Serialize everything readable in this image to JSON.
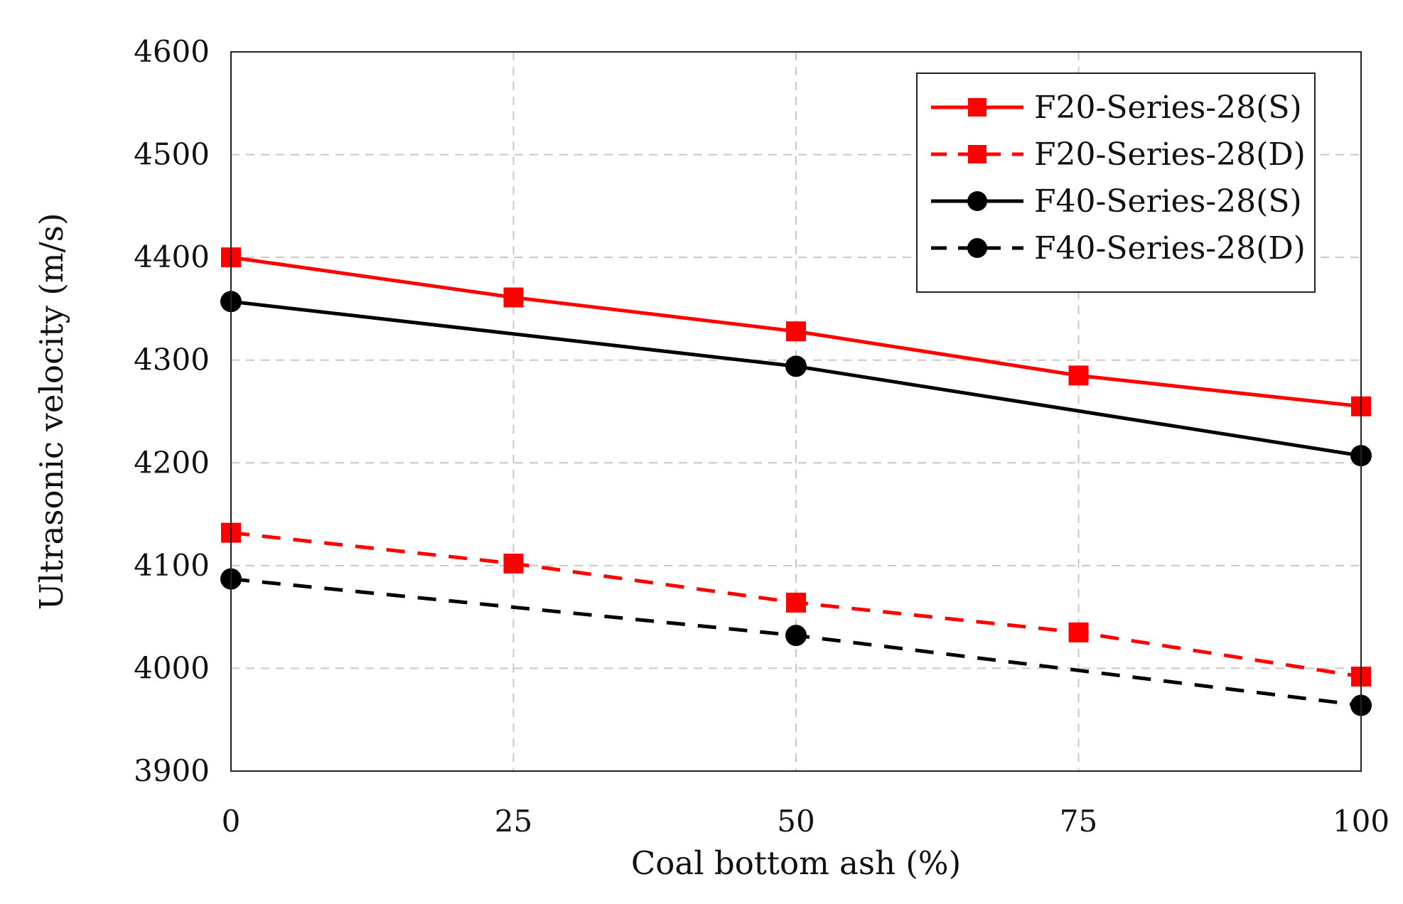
{
  "chart_data": {
    "type": "line",
    "title": "",
    "xlabel": "Coal bottom ash (%)",
    "ylabel": "Ultrasonic velocity (m/s)",
    "x": [
      0,
      25,
      50,
      75,
      100
    ],
    "x_tick_labels": [
      "0",
      "25",
      "50",
      "75",
      "100"
    ],
    "xlim": [
      0,
      100
    ],
    "ylim": [
      3900,
      4600
    ],
    "y_ticks": [
      3900,
      4000,
      4100,
      4200,
      4300,
      4400,
      4500,
      4600
    ],
    "y_tick_labels": [
      "3900",
      "4000",
      "4100",
      "4200",
      "4300",
      "4400",
      "4500",
      "4600"
    ],
    "grid": true,
    "legend_position": "top-right",
    "series": [
      {
        "name": "F20-Series-28(S)",
        "color": "#ff0000",
        "line_style": "solid",
        "marker": "square",
        "values": [
          4400,
          4361,
          4328,
          4285,
          4255
        ]
      },
      {
        "name": "F20-Series-28(D)",
        "color": "#ff0000",
        "line_style": "dashed",
        "marker": "square",
        "values": [
          4132,
          4102,
          4064,
          4035,
          3992
        ]
      },
      {
        "name": "F40-Series-28(S)",
        "color": "#000000",
        "line_style": "solid",
        "marker": "circle",
        "values": [
          4357,
          null,
          4294,
          null,
          4207
        ]
      },
      {
        "name": "F40-Series-28(D)",
        "color": "#000000",
        "line_style": "dashed",
        "marker": "circle",
        "values": [
          4087,
          null,
          4032,
          null,
          3964
        ]
      }
    ]
  }
}
